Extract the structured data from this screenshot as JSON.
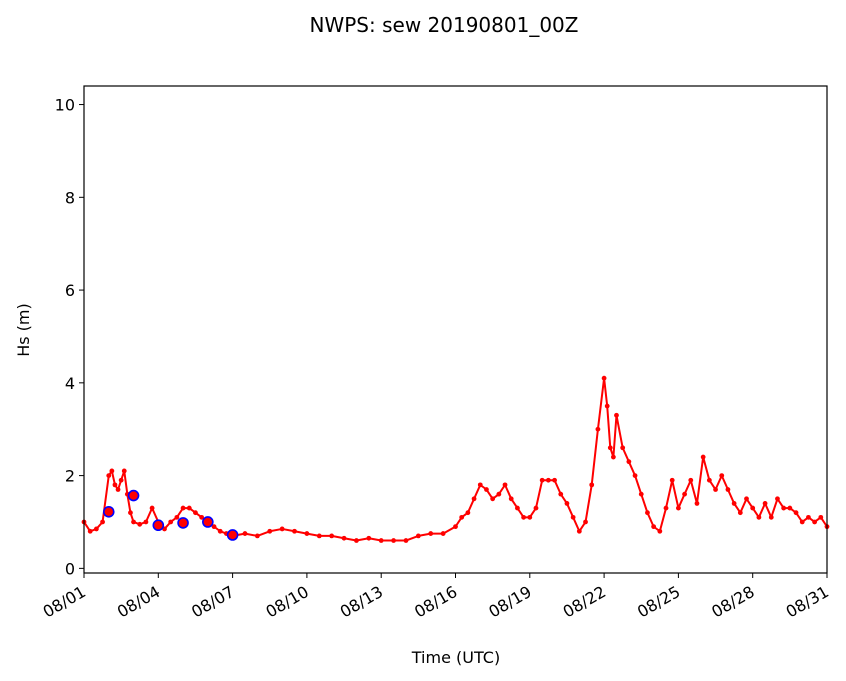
{
  "chart_data": {
    "type": "line",
    "title": "NWPS: sew 20190801_00Z",
    "xlabel": "Time (UTC)",
    "ylabel": "Hs (m)",
    "x_unit": "days",
    "xlim": [
      "2019-08-01",
      "2019-08-31"
    ],
    "ylim": [
      -0.1,
      10.4
    ],
    "x_ticks": [
      "08/01",
      "08/04",
      "08/07",
      "08/10",
      "08/13",
      "08/16",
      "08/19",
      "08/22",
      "08/25",
      "08/28",
      "08/31"
    ],
    "y_ticks": [
      "0",
      "2",
      "4",
      "6",
      "8",
      "10"
    ],
    "colors": {
      "model": "#ff0000",
      "obs_edge": "#0000ff",
      "obs_fill": "#ff0000"
    },
    "series": [
      {
        "style": "red line with dot markers",
        "x": [
          "2019-08-01 00:00",
          "2019-08-01 06:00",
          "2019-08-01 12:00",
          "2019-08-01 18:00",
          "2019-08-02 00:00",
          "2019-08-02 03:00",
          "2019-08-02 06:00",
          "2019-08-02 09:00",
          "2019-08-02 12:00",
          "2019-08-02 15:00",
          "2019-08-02 18:00",
          "2019-08-02 21:00",
          "2019-08-03 00:00",
          "2019-08-03 06:00",
          "2019-08-03 12:00",
          "2019-08-03 18:00",
          "2019-08-04 00:00",
          "2019-08-04 06:00",
          "2019-08-04 12:00",
          "2019-08-04 18:00",
          "2019-08-05 00:00",
          "2019-08-05 06:00",
          "2019-08-05 12:00",
          "2019-08-05 18:00",
          "2019-08-06 00:00",
          "2019-08-06 06:00",
          "2019-08-06 12:00",
          "2019-08-06 18:00",
          "2019-08-07 00:00",
          "2019-08-07 12:00",
          "2019-08-08 00:00",
          "2019-08-08 12:00",
          "2019-08-09 00:00",
          "2019-08-09 12:00",
          "2019-08-10 00:00",
          "2019-08-10 12:00",
          "2019-08-11 00:00",
          "2019-08-11 12:00",
          "2019-08-12 00:00",
          "2019-08-12 12:00",
          "2019-08-13 00:00",
          "2019-08-13 12:00",
          "2019-08-14 00:00",
          "2019-08-14 12:00",
          "2019-08-15 00:00",
          "2019-08-15 12:00",
          "2019-08-16 00:00",
          "2019-08-16 06:00",
          "2019-08-16 12:00",
          "2019-08-16 18:00",
          "2019-08-17 00:00",
          "2019-08-17 06:00",
          "2019-08-17 12:00",
          "2019-08-17 18:00",
          "2019-08-18 00:00",
          "2019-08-18 06:00",
          "2019-08-18 12:00",
          "2019-08-18 18:00",
          "2019-08-19 00:00",
          "2019-08-19 06:00",
          "2019-08-19 12:00",
          "2019-08-19 18:00",
          "2019-08-20 00:00",
          "2019-08-20 06:00",
          "2019-08-20 12:00",
          "2019-08-20 18:00",
          "2019-08-21 00:00",
          "2019-08-21 06:00",
          "2019-08-21 12:00",
          "2019-08-21 18:00",
          "2019-08-22 00:00",
          "2019-08-22 03:00",
          "2019-08-22 06:00",
          "2019-08-22 09:00",
          "2019-08-22 12:00",
          "2019-08-22 18:00",
          "2019-08-23 00:00",
          "2019-08-23 06:00",
          "2019-08-23 12:00",
          "2019-08-23 18:00",
          "2019-08-24 00:00",
          "2019-08-24 06:00",
          "2019-08-24 12:00",
          "2019-08-24 18:00",
          "2019-08-25 00:00",
          "2019-08-25 06:00",
          "2019-08-25 12:00",
          "2019-08-25 18:00",
          "2019-08-26 00:00",
          "2019-08-26 06:00",
          "2019-08-26 12:00",
          "2019-08-26 18:00",
          "2019-08-27 00:00",
          "2019-08-27 06:00",
          "2019-08-27 12:00",
          "2019-08-27 18:00",
          "2019-08-28 00:00",
          "2019-08-28 06:00",
          "2019-08-28 12:00",
          "2019-08-28 18:00",
          "2019-08-29 00:00",
          "2019-08-29 06:00",
          "2019-08-29 12:00",
          "2019-08-29 18:00",
          "2019-08-30 00:00",
          "2019-08-30 06:00",
          "2019-08-30 12:00",
          "2019-08-30 18:00",
          "2019-08-31 00:00"
        ],
        "y": [
          1.0,
          0.8,
          0.85,
          1.0,
          2.0,
          2.1,
          1.8,
          1.7,
          1.9,
          2.1,
          1.6,
          1.2,
          1.0,
          0.95,
          1.0,
          1.3,
          1.0,
          0.85,
          1.0,
          1.1,
          1.3,
          1.3,
          1.2,
          1.1,
          1.0,
          0.9,
          0.8,
          0.75,
          0.7,
          0.75,
          0.7,
          0.8,
          0.85,
          0.8,
          0.75,
          0.7,
          0.7,
          0.65,
          0.6,
          0.65,
          0.6,
          0.6,
          0.6,
          0.7,
          0.75,
          0.75,
          0.9,
          1.1,
          1.2,
          1.5,
          1.8,
          1.7,
          1.5,
          1.6,
          1.8,
          1.5,
          1.3,
          1.1,
          1.1,
          1.3,
          1.9,
          1.9,
          1.9,
          1.6,
          1.4,
          1.1,
          0.8,
          1.0,
          1.8,
          3.0,
          4.1,
          3.5,
          2.6,
          2.4,
          3.3,
          2.6,
          2.3,
          2.0,
          1.6,
          1.2,
          0.9,
          0.8,
          1.3,
          1.9,
          1.3,
          1.6,
          1.9,
          1.4,
          2.4,
          1.9,
          1.7,
          2.0,
          1.7,
          1.4,
          1.2,
          1.5,
          1.3,
          1.1,
          1.4,
          1.1,
          1.5,
          1.3,
          1.3,
          1.2,
          1.0,
          1.1,
          1.0,
          1.1,
          0.9
        ]
      },
      {
        "style": "blue-edged circle markers",
        "x": [
          "2019-08-02 00:00",
          "2019-08-03 00:00",
          "2019-08-04 00:00",
          "2019-08-05 00:00",
          "2019-08-06 00:00",
          "2019-08-07 00:00"
        ],
        "y": [
          1.22,
          1.57,
          0.93,
          0.98,
          1.0,
          0.72
        ]
      }
    ]
  }
}
